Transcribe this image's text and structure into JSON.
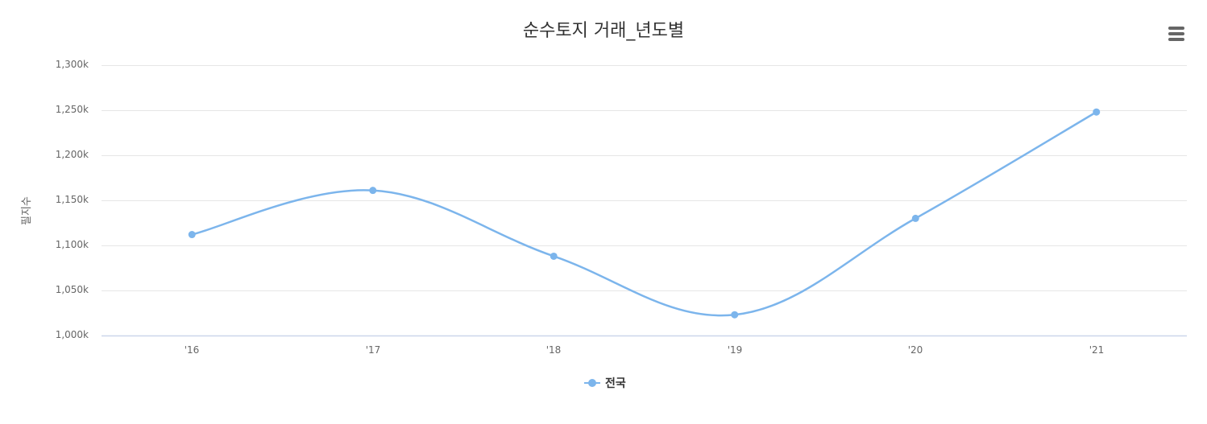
{
  "chart_data": {
    "type": "line",
    "title": "순수토지 거래_년도별",
    "xlabel": "",
    "ylabel": "필지수",
    "categories": [
      "'16",
      "'17",
      "'18",
      "'19",
      "'20",
      "'21"
    ],
    "series": [
      {
        "name": "전국",
        "color": "#7cb5ec",
        "values": [
          1112000,
          1161000,
          1088000,
          1023000,
          1130000,
          1248000
        ]
      }
    ],
    "ylim": [
      1000000,
      1300000
    ],
    "y_ticks": [
      "1,300k",
      "1,250k",
      "1,200k",
      "1,150k",
      "1,100k",
      "1,050k",
      "1,000k"
    ],
    "grid": true,
    "smooth": true,
    "legend_position": "bottom-center"
  },
  "title": "순수토지 거래_년도별",
  "y_axis": {
    "title": "필지수",
    "ticks": [
      "1,300k",
      "1,250k",
      "1,200k",
      "1,150k",
      "1,100k",
      "1,050k",
      "1,000k"
    ]
  },
  "x_axis": {
    "ticks": [
      "'16",
      "'17",
      "'18",
      "'19",
      "'20",
      "'21"
    ]
  },
  "legend": {
    "items": [
      {
        "label": "전국",
        "color": "#7cb5ec"
      }
    ]
  },
  "menu": {
    "icon": "hamburger-menu-icon"
  }
}
